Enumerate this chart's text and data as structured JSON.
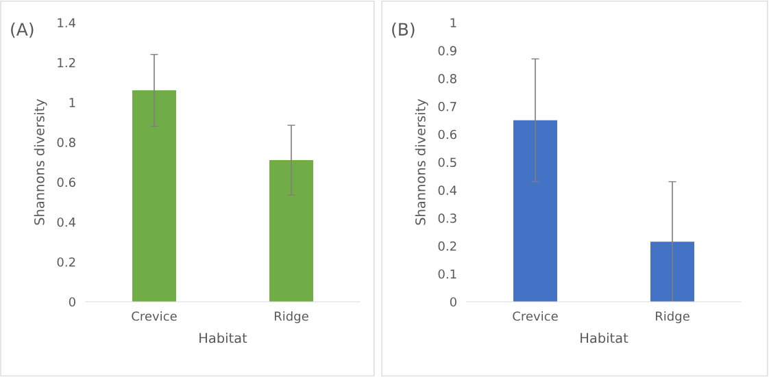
{
  "chart_data": [
    {
      "type": "bar",
      "annotations": [
        "(A)"
      ],
      "categories": [
        "Crevice",
        "Ridge"
      ],
      "values": [
        1.06,
        0.71
      ],
      "errors": [
        0.18,
        0.175
      ],
      "color": "#70ad47",
      "xlabel": "Habitat",
      "ylabel": "Shannons diversity",
      "ylim": [
        0,
        1.4
      ],
      "yticks": [
        0,
        0.2,
        0.4,
        0.6,
        0.8,
        1,
        1.2,
        1.4
      ]
    },
    {
      "type": "bar",
      "annotations": [
        "(B)"
      ],
      "categories": [
        "Crevice",
        "Ridge"
      ],
      "values": [
        0.65,
        0.215
      ],
      "errors": [
        0.22,
        0.215
      ],
      "color": "#4472c4",
      "xlabel": "Habitat",
      "ylabel": "Shannons diversity",
      "ylim": [
        0,
        1
      ],
      "yticks": [
        0,
        0.1,
        0.2,
        0.3,
        0.4,
        0.5,
        0.6,
        0.7,
        0.8,
        0.9,
        1
      ]
    }
  ]
}
